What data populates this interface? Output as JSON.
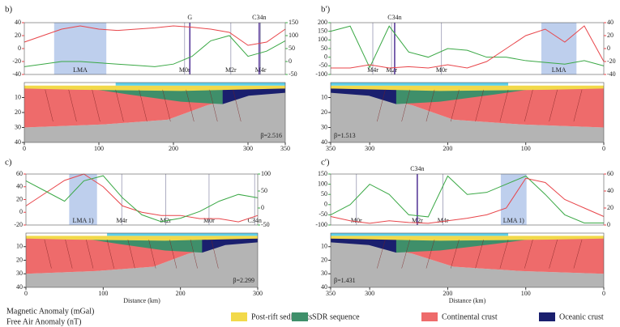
{
  "chart_data": [
    {
      "type": "line",
      "title": "b)",
      "x": [
        0,
        25,
        50,
        75,
        100,
        125,
        150,
        175,
        200,
        225,
        250,
        275,
        300,
        325,
        350
      ],
      "xlim": [
        0,
        350
      ],
      "xticks": [
        0,
        100,
        200,
        300,
        350
      ],
      "ylim": [
        -40,
        40
      ],
      "yticks": [
        -40,
        -20,
        0,
        20,
        40
      ],
      "y2lim": [
        -50,
        150
      ],
      "y2ticks": [
        -50,
        0,
        50,
        100,
        150
      ],
      "series": [
        {
          "color": "#e8454a",
          "values": [
            10,
            20,
            30,
            35,
            30,
            28,
            30,
            32,
            35,
            33,
            30,
            25,
            5,
            10,
            30
          ]
        },
        {
          "color": "#3aa845",
          "axis": "y2",
          "values": [
            -20,
            -10,
            0,
            0,
            -5,
            -10,
            -15,
            -20,
            -10,
            20,
            80,
            100,
            20,
            40,
            80
          ]
        }
      ],
      "shaded": [
        40,
        110
      ],
      "shaded_label": "LMA",
      "markers": [
        {
          "label": "M0r",
          "x": 215
        },
        {
          "label": "M2r",
          "x": 277
        },
        {
          "label": "M4r",
          "x": 317
        }
      ],
      "top_markers": [
        {
          "label": "G",
          "x": 222
        },
        {
          "label": "C34n",
          "x": 315
        }
      ],
      "section": {
        "ylim": [
          0,
          40
        ],
        "yticks": [
          10,
          20,
          30,
          40
        ],
        "beta": "β=2.516"
      }
    },
    {
      "type": "line",
      "title": "b')",
      "x": [
        350,
        325,
        300,
        275,
        250,
        225,
        200,
        175,
        150,
        125,
        100,
        75,
        50,
        25,
        0
      ],
      "xlim": [
        350,
        0
      ],
      "xticks": [
        350,
        300,
        200,
        100,
        0
      ],
      "ylim": [
        -100,
        200
      ],
      "yticks": [
        -100,
        -50,
        0,
        50,
        100,
        150,
        200
      ],
      "y2lim": [
        -40,
        40
      ],
      "y2ticks": [
        -40,
        -20,
        0,
        20,
        40
      ],
      "series": [
        {
          "color": "#3aa845",
          "values": [
            150,
            180,
            -60,
            180,
            30,
            0,
            50,
            40,
            0,
            0,
            -20,
            -30,
            -40,
            -20,
            -50
          ]
        },
        {
          "color": "#e8454a",
          "axis": "y2",
          "values": [
            -30,
            -30,
            -25,
            -30,
            -28,
            -30,
            -25,
            -30,
            -20,
            0,
            20,
            30,
            10,
            35,
            -20
          ]
        }
      ],
      "shaded": [
        80,
        35
      ],
      "shaded_label": "LMA",
      "markers": [
        {
          "label": "M4r",
          "x": 296
        },
        {
          "label": "M2r",
          "x": 272
        },
        {
          "label": "M0r",
          "x": 208
        }
      ],
      "top_markers": [
        {
          "label": "C34n",
          "x": 268
        }
      ],
      "section": {
        "ylim": [
          0,
          40
        ],
        "yticks": [
          10,
          20,
          30,
          40
        ],
        "beta": "β=1.513"
      }
    },
    {
      "type": "line",
      "title": "c)",
      "x": [
        0,
        25,
        50,
        75,
        100,
        125,
        150,
        175,
        200,
        225,
        250,
        275,
        300
      ],
      "xlim": [
        0,
        300
      ],
      "xticks": [
        0,
        100,
        200,
        300
      ],
      "xlabel": "Distance (km)",
      "ylim": [
        -20,
        60
      ],
      "yticks": [
        -20,
        0,
        20,
        40,
        60
      ],
      "y2lim": [
        -50,
        100
      ],
      "y2ticks": [
        -50,
        0,
        50,
        100
      ],
      "series": [
        {
          "color": "#e8454a",
          "values": [
            10,
            30,
            50,
            60,
            40,
            10,
            0,
            -5,
            -5,
            -10,
            -10,
            -15,
            -5
          ]
        },
        {
          "color": "#3aa845",
          "axis": "y2",
          "values": [
            80,
            50,
            20,
            80,
            95,
            30,
            -20,
            -40,
            -30,
            -10,
            20,
            40,
            30
          ]
        }
      ],
      "shaded": [
        56,
        92
      ],
      "shaded_label": "LMA 1)",
      "markers": [
        {
          "label": "M4r",
          "x": 124
        },
        {
          "label": "M2r",
          "x": 181
        },
        {
          "label": "M0r",
          "x": 237
        },
        {
          "label": "C34n",
          "x": 296
        }
      ],
      "top_markers": [],
      "section": {
        "ylim": [
          0,
          40
        ],
        "yticks": [
          10,
          20,
          30,
          40
        ],
        "beta": "β=2.299"
      }
    },
    {
      "type": "line",
      "title": "c')",
      "x": [
        350,
        325,
        300,
        275,
        250,
        225,
        200,
        175,
        150,
        125,
        100,
        75,
        50,
        25,
        0
      ],
      "xlim": [
        350,
        0
      ],
      "xticks": [
        350,
        300,
        200,
        100,
        0
      ],
      "xlabel": "Distance (km)",
      "ylim": [
        -100,
        150
      ],
      "yticks": [
        -100,
        -50,
        0,
        50,
        100,
        150
      ],
      "y2lim": [
        0,
        60
      ],
      "y2ticks": [
        0,
        20,
        40,
        60
      ],
      "series": [
        {
          "color": "#3aa845",
          "values": [
            -50,
            0,
            100,
            50,
            -50,
            -60,
            140,
            50,
            60,
            100,
            140,
            50,
            -50,
            -90,
            -90
          ]
        },
        {
          "color": "#e8454a",
          "axis": "y2",
          "values": [
            10,
            5,
            2,
            5,
            3,
            2,
            5,
            8,
            12,
            20,
            55,
            50,
            30,
            20,
            10
          ]
        }
      ],
      "shaded": [
        132,
        99
      ],
      "shaded_label": "LMA 1)",
      "markers": [
        {
          "label": "M0r",
          "x": 317
        },
        {
          "label": "M2r",
          "x": 239
        },
        {
          "label": "M4r",
          "x": 206
        }
      ],
      "top_markers": [
        {
          "label": "C34n",
          "x": 239
        }
      ],
      "section": {
        "ylim": [
          0,
          40
        ],
        "yticks": [
          10,
          20,
          30,
          40
        ],
        "beta": "β=1.431"
      }
    }
  ],
  "legend": {
    "anomalies": [
      {
        "name": "Magnetic Anomaly (mGal)",
        "color": "#3aa845"
      },
      {
        "name": "Free Air Anomaly (nT)",
        "color": "#e8454a"
      }
    ],
    "layers": [
      {
        "name": "Post-rift sediments",
        "color": "#f2d94a"
      },
      {
        "name": "SDR sequence",
        "color": "#3f8f6a"
      },
      {
        "name": "Continental crust",
        "color": "#ee6b6b"
      },
      {
        "name": "Oceanic crust",
        "color": "#1a1f6e"
      }
    ]
  }
}
